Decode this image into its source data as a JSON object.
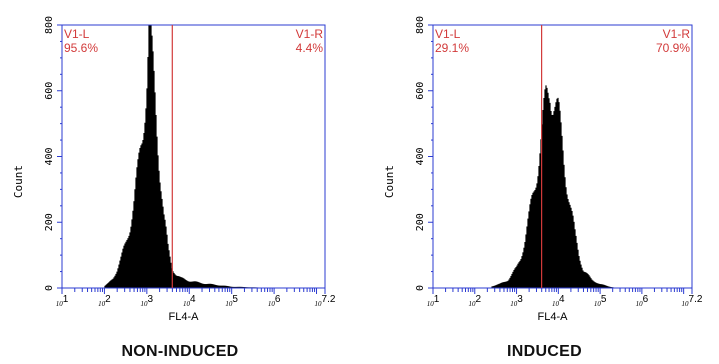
{
  "chart_data": [
    {
      "type": "histogram",
      "caption": "NON-INDUCED",
      "xlabel": "FL4-A",
      "ylabel": "Count",
      "x_scale": "log",
      "xlim_log10": [
        1,
        7.2
      ],
      "xtick_labels": [
        "10^1",
        "10^2",
        "10^3",
        "10^4",
        "10^5",
        "10^6",
        "10^7.2"
      ],
      "ylim": [
        0,
        800
      ],
      "yticks": [
        0,
        200,
        400,
        600,
        800
      ],
      "gate_log10": 3.6,
      "gate_left_label": "V1-L",
      "gate_left_pct": "95.6%",
      "gate_right_label": "V1-R",
      "gate_right_pct": "4.4%",
      "bins_log10": [
        2.0,
        2.1,
        2.2,
        2.3,
        2.4,
        2.5,
        2.6,
        2.7,
        2.8,
        2.9,
        3.0,
        3.05,
        3.1,
        3.2,
        3.3,
        3.4,
        3.5,
        3.6,
        3.7,
        3.8,
        3.9,
        4.0,
        4.2,
        4.4,
        4.6,
        4.8,
        5.0,
        5.5,
        6.0
      ],
      "counts": [
        5,
        15,
        30,
        55,
        90,
        135,
        190,
        260,
        360,
        480,
        640,
        780,
        720,
        560,
        380,
        220,
        120,
        60,
        40,
        30,
        26,
        22,
        17,
        13,
        10,
        7,
        4,
        2,
        0
      ]
    },
    {
      "type": "histogram",
      "caption": "INDUCED",
      "xlabel": "FL4-A",
      "ylabel": "Count",
      "x_scale": "log",
      "xlim_log10": [
        1,
        7.2
      ],
      "xtick_labels": [
        "10^1",
        "10^2",
        "10^3",
        "10^4",
        "10^5",
        "10^6",
        "10^7.2"
      ],
      "ylim": [
        0,
        800
      ],
      "yticks": [
        0,
        200,
        400,
        600,
        800
      ],
      "gate_log10": 3.6,
      "gate_left_label": "V1-L",
      "gate_left_pct": "29.1%",
      "gate_right_label": "V1-R",
      "gate_right_pct": "70.9%",
      "bins_log10": [
        2.4,
        2.6,
        2.8,
        3.0,
        3.1,
        3.2,
        3.3,
        3.4,
        3.5,
        3.6,
        3.7,
        3.8,
        3.9,
        4.0,
        4.1,
        4.2,
        4.3,
        4.4,
        4.5,
        4.6,
        4.8,
        5.0,
        5.2,
        5.4
      ],
      "counts": [
        5,
        12,
        25,
        60,
        95,
        145,
        210,
        290,
        370,
        460,
        560,
        615,
        580,
        520,
        430,
        330,
        240,
        160,
        100,
        55,
        25,
        12,
        5,
        0
      ]
    }
  ]
}
